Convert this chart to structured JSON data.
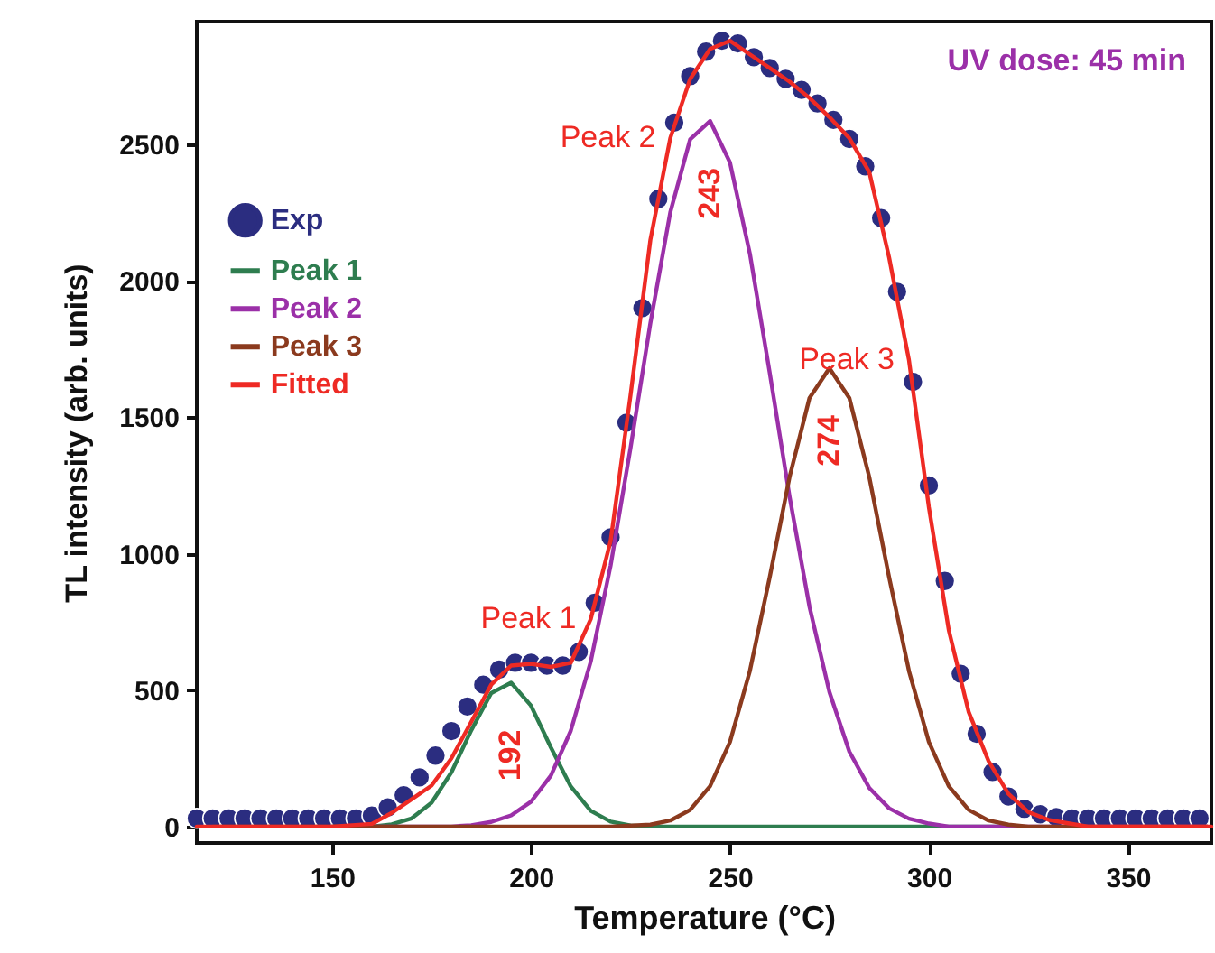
{
  "chart_data": {
    "type": "line",
    "xlabel": "Temperature (°C)",
    "ylabel": "TL intensity (arb. units)",
    "xlim": [
      116,
      371
    ],
    "ylim": [
      -60,
      2950
    ],
    "xticks": [
      150,
      200,
      250,
      300,
      350
    ],
    "yticks": [
      0,
      500,
      1000,
      1500,
      2000,
      2500
    ],
    "legend": "top left",
    "line_style": "solid",
    "annotations": [
      {
        "text": "Peak 1",
        "x": 215,
        "y": 760
      },
      {
        "text": "192",
        "x": 195,
        "y": 527
      },
      {
        "text": "Peak 2",
        "x": 235,
        "y": 2523
      },
      {
        "text": "243",
        "x": 245,
        "y": 2586
      },
      {
        "text": "Peak 3",
        "x": 295,
        "y": 1709
      },
      {
        "text": "274",
        "x": 275,
        "y": 1680
      },
      "UV dose: 45 min"
    ],
    "series": [
      {
        "name": "Exp",
        "type": "scatter",
        "color": "#2b2d80",
        "x": [
          116,
          120,
          124,
          128,
          132,
          136,
          140,
          144,
          148,
          152,
          156,
          160,
          164,
          168,
          172,
          176,
          180,
          184,
          188,
          192,
          196,
          200,
          204,
          208,
          212,
          216,
          220,
          224,
          228,
          232,
          236,
          240,
          244,
          248,
          252,
          256,
          260,
          264,
          268,
          272,
          276,
          280,
          284,
          288,
          292,
          296,
          300,
          304,
          308,
          312,
          316,
          320,
          324,
          328,
          332,
          336,
          340,
          344,
          348,
          352,
          356,
          360,
          364,
          368
        ],
        "values": [
          30,
          30,
          30,
          30,
          30,
          30,
          30,
          30,
          30,
          30,
          30,
          40,
          70,
          115,
          180,
          260,
          350,
          440,
          520,
          575,
          600,
          600,
          590,
          590,
          640,
          820,
          1060,
          1480,
          1900,
          2300,
          2580,
          2750,
          2840,
          2880,
          2870,
          2820,
          2780,
          2740,
          2700,
          2650,
          2590,
          2520,
          2420,
          2230,
          1960,
          1630,
          1250,
          900,
          560,
          340,
          200,
          110,
          65,
          45,
          35,
          30,
          30,
          30,
          30,
          30,
          30,
          30,
          30,
          30
        ]
      },
      {
        "name": "Peak 1",
        "color": "#2e7d4f",
        "x": [
          150,
          160,
          165,
          170,
          175,
          180,
          185,
          190,
          195,
          200,
          205,
          210,
          215,
          220,
          225,
          230,
          240,
          260,
          280,
          300,
          320
        ],
        "values": [
          0,
          0,
          8,
          30,
          87,
          199,
          353,
          489,
          527,
          443,
          290,
          147,
          58,
          18,
          4,
          0,
          0,
          0,
          0,
          0,
          0
        ]
      },
      {
        "name": "Peak 2",
        "color": "#9b30a8",
        "x": [
          160,
          180,
          185,
          190,
          195,
          200,
          205,
          210,
          215,
          220,
          225,
          230,
          235,
          240,
          245,
          250,
          255,
          260,
          265,
          270,
          275,
          280,
          285,
          290,
          295,
          300,
          305,
          320,
          340,
          370
        ],
        "values": [
          0,
          0,
          5,
          17,
          41,
          91,
          187,
          351,
          604,
          956,
          1387,
          1845,
          2251,
          2519,
          2586,
          2434,
          2100,
          1663,
          1208,
          805,
          493,
          275,
          142,
          67,
          29,
          11,
          0,
          0,
          0,
          0
        ]
      },
      {
        "name": "Peak 3",
        "color": "#8b3a1e",
        "x": [
          120,
          160,
          200,
          220,
          230,
          235,
          240,
          245,
          250,
          255,
          260,
          265,
          270,
          275,
          280,
          285,
          290,
          295,
          300,
          305,
          310,
          315,
          320,
          325,
          340,
          370
        ],
        "values": [
          0,
          0,
          0,
          0,
          7,
          22,
          61,
          148,
          310,
          570,
          914,
          1282,
          1571,
          1680,
          1571,
          1282,
          914,
          570,
          310,
          148,
          61,
          22,
          7,
          0,
          0,
          0
        ]
      },
      {
        "name": "Fitted",
        "color": "#ee2a24",
        "x": [
          116,
          120,
          130,
          140,
          150,
          160,
          165,
          170,
          175,
          180,
          185,
          190,
          195,
          200,
          205,
          210,
          215,
          220,
          225,
          230,
          235,
          240,
          245,
          250,
          255,
          260,
          265,
          270,
          275,
          280,
          285,
          290,
          295,
          300,
          305,
          310,
          315,
          320,
          325,
          330,
          335,
          340,
          350,
          360,
          371
        ],
        "values": [
          0,
          0,
          0,
          0,
          0,
          10,
          50,
          100,
          150,
          250,
          384,
          520,
          590,
          596,
          585,
          600,
          760,
          1046,
          1580,
          2150,
          2523,
          2740,
          2850,
          2880,
          2830,
          2780,
          2730,
          2670,
          2600,
          2523,
          2400,
          2086,
          1709,
          1170,
          720,
          420,
          240,
          120,
          53,
          25,
          12,
          0,
          0,
          0,
          0
        ]
      }
    ]
  }
}
